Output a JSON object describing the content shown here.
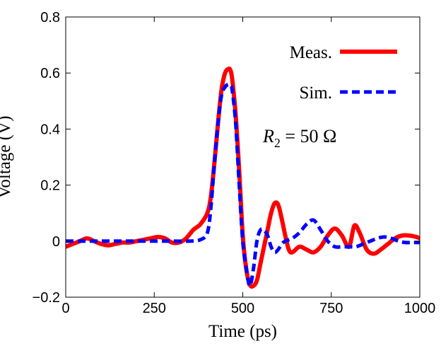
{
  "chart_data": {
    "type": "line",
    "xlabel": "Time (ps)",
    "ylabel": "Voltage (V)",
    "xlim": [
      0,
      1000
    ],
    "ylim": [
      -0.2,
      0.8
    ],
    "xticks": [
      "0",
      "250",
      "500",
      "750",
      "1000"
    ],
    "yticks": [
      "−0.2",
      "0",
      "0.2",
      "0.4",
      "0.6",
      "0.8"
    ],
    "grid": false,
    "legend_position": "top-right",
    "annotation": {
      "symbol": "R",
      "subscript": "2",
      "rest": " = 50 Ω"
    },
    "series": [
      {
        "name": "Meas.",
        "color": "#ff0000",
        "style": "solid",
        "x": [
          0,
          20,
          40,
          60,
          80,
          100,
          120,
          140,
          160,
          180,
          200,
          220,
          240,
          260,
          280,
          300,
          320,
          340,
          360,
          380,
          400,
          410,
          420,
          430,
          440,
          450,
          460,
          465,
          470,
          480,
          490,
          500,
          510,
          520,
          530,
          540,
          550,
          560,
          570,
          580,
          590,
          600,
          610,
          620,
          630,
          640,
          660,
          680,
          700,
          720,
          740,
          760,
          780,
          800,
          815,
          830,
          850,
          870,
          890,
          910,
          930,
          950,
          970,
          990,
          1000
        ],
        "y": [
          -0.02,
          -0.01,
          0.0,
          0.01,
          0.0,
          -0.01,
          -0.015,
          -0.01,
          -0.005,
          -0.005,
          0.0,
          0.005,
          0.01,
          0.015,
          0.01,
          -0.005,
          -0.005,
          0.01,
          0.04,
          0.06,
          0.1,
          0.16,
          0.28,
          0.42,
          0.54,
          0.6,
          0.615,
          0.61,
          0.58,
          0.45,
          0.25,
          0.02,
          -0.1,
          -0.155,
          -0.16,
          -0.14,
          -0.08,
          -0.02,
          0.04,
          0.1,
          0.135,
          0.13,
          0.08,
          0.02,
          -0.03,
          -0.04,
          -0.02,
          -0.03,
          -0.04,
          -0.02,
          0.02,
          0.045,
          0.02,
          -0.02,
          0.055,
          0.03,
          -0.03,
          -0.045,
          -0.03,
          -0.01,
          0.01,
          0.02,
          0.02,
          0.015,
          0.01
        ]
      },
      {
        "name": "Sim.",
        "color": "#0000ff",
        "style": "dashed",
        "x": [
          0,
          50,
          100,
          150,
          200,
          250,
          300,
          350,
          380,
          400,
          410,
          420,
          430,
          440,
          450,
          460,
          465,
          470,
          480,
          490,
          500,
          510,
          520,
          530,
          540,
          550,
          560,
          570,
          580,
          590,
          600,
          610,
          620,
          640,
          660,
          680,
          700,
          720,
          740,
          760,
          780,
          800,
          820,
          840,
          860,
          880,
          900,
          920,
          940,
          960,
          980,
          1000
        ],
        "y": [
          0.0,
          0.0,
          0.0,
          0.0,
          0.0,
          0.0,
          0.0,
          0.0,
          0.005,
          0.03,
          0.12,
          0.28,
          0.42,
          0.52,
          0.55,
          0.56,
          0.555,
          0.54,
          0.42,
          0.2,
          0.0,
          -0.1,
          -0.16,
          -0.1,
          0.0,
          0.04,
          0.04,
          0.02,
          -0.02,
          -0.04,
          -0.03,
          -0.01,
          0.0,
          0.01,
          0.03,
          0.06,
          0.075,
          0.04,
          0.0,
          -0.02,
          -0.02,
          -0.02,
          -0.02,
          -0.01,
          0.0,
          0.01,
          0.015,
          0.01,
          0.0,
          -0.005,
          -0.005,
          -0.005
        ]
      }
    ]
  }
}
